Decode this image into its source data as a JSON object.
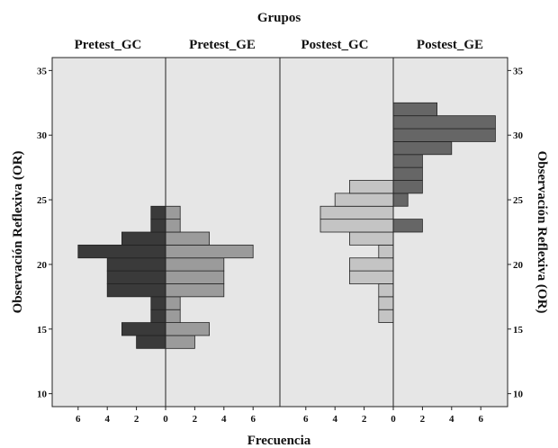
{
  "chart_data": {
    "type": "bar",
    "orientation": "horizontal back-to-back (population pyramid) histograms",
    "title": "Grupos",
    "xlabel": "Frecuencia",
    "ylabel_left": "Observación Reflexiva (OR)",
    "ylabel_right": "Observación Reflexiva (OR)",
    "ylim": [
      9,
      36
    ],
    "yticks": [
      10,
      15,
      20,
      25,
      30,
      35
    ],
    "xticks_left": [
      "6",
      "4",
      "2",
      "0"
    ],
    "xticks_right": [
      "0",
      "2",
      "4",
      "6"
    ],
    "panels": [
      {
        "name": "Pretest",
        "left_group": "Pretest_GC",
        "right_group": "Pretest_GE",
        "left_color": "#3a3a3a",
        "right_color": "#9b9b9b",
        "left_bars": [
          {
            "y": 14,
            "value": 2
          },
          {
            "y": 15,
            "value": 3
          },
          {
            "y": 16,
            "value": 1
          },
          {
            "y": 17,
            "value": 1
          },
          {
            "y": 18,
            "value": 4
          },
          {
            "y": 19,
            "value": 4
          },
          {
            "y": 20,
            "value": 4
          },
          {
            "y": 21,
            "value": 6
          },
          {
            "y": 22,
            "value": 3
          },
          {
            "y": 23,
            "value": 1
          },
          {
            "y": 24,
            "value": 1
          }
        ],
        "right_bars": [
          {
            "y": 14,
            "value": 2
          },
          {
            "y": 15,
            "value": 3
          },
          {
            "y": 16,
            "value": 1
          },
          {
            "y": 17,
            "value": 1
          },
          {
            "y": 18,
            "value": 4
          },
          {
            "y": 19,
            "value": 4
          },
          {
            "y": 20,
            "value": 4
          },
          {
            "y": 21,
            "value": 6
          },
          {
            "y": 22,
            "value": 3
          },
          {
            "y": 23,
            "value": 1
          },
          {
            "y": 24,
            "value": 1
          }
        ]
      },
      {
        "name": "Postest",
        "left_group": "Postest_GC",
        "right_group": "Postest_GE",
        "left_color": "#c4c4c4",
        "right_color": "#666666",
        "left_bars": [
          {
            "y": 16,
            "value": 1
          },
          {
            "y": 17,
            "value": 1
          },
          {
            "y": 18,
            "value": 1
          },
          {
            "y": 19,
            "value": 3
          },
          {
            "y": 20,
            "value": 3
          },
          {
            "y": 21,
            "value": 1
          },
          {
            "y": 22,
            "value": 3
          },
          {
            "y": 23,
            "value": 5
          },
          {
            "y": 24,
            "value": 5
          },
          {
            "y": 25,
            "value": 4
          },
          {
            "y": 26,
            "value": 3
          }
        ],
        "right_bars": [
          {
            "y": 23,
            "value": 2
          },
          {
            "y": 25,
            "value": 1
          },
          {
            "y": 26,
            "value": 2
          },
          {
            "y": 27,
            "value": 2
          },
          {
            "y": 28,
            "value": 2
          },
          {
            "y": 29,
            "value": 4
          },
          {
            "y": 30,
            "value": 7
          },
          {
            "y": 31,
            "value": 7
          },
          {
            "y": 32,
            "value": 3
          }
        ]
      }
    ]
  }
}
